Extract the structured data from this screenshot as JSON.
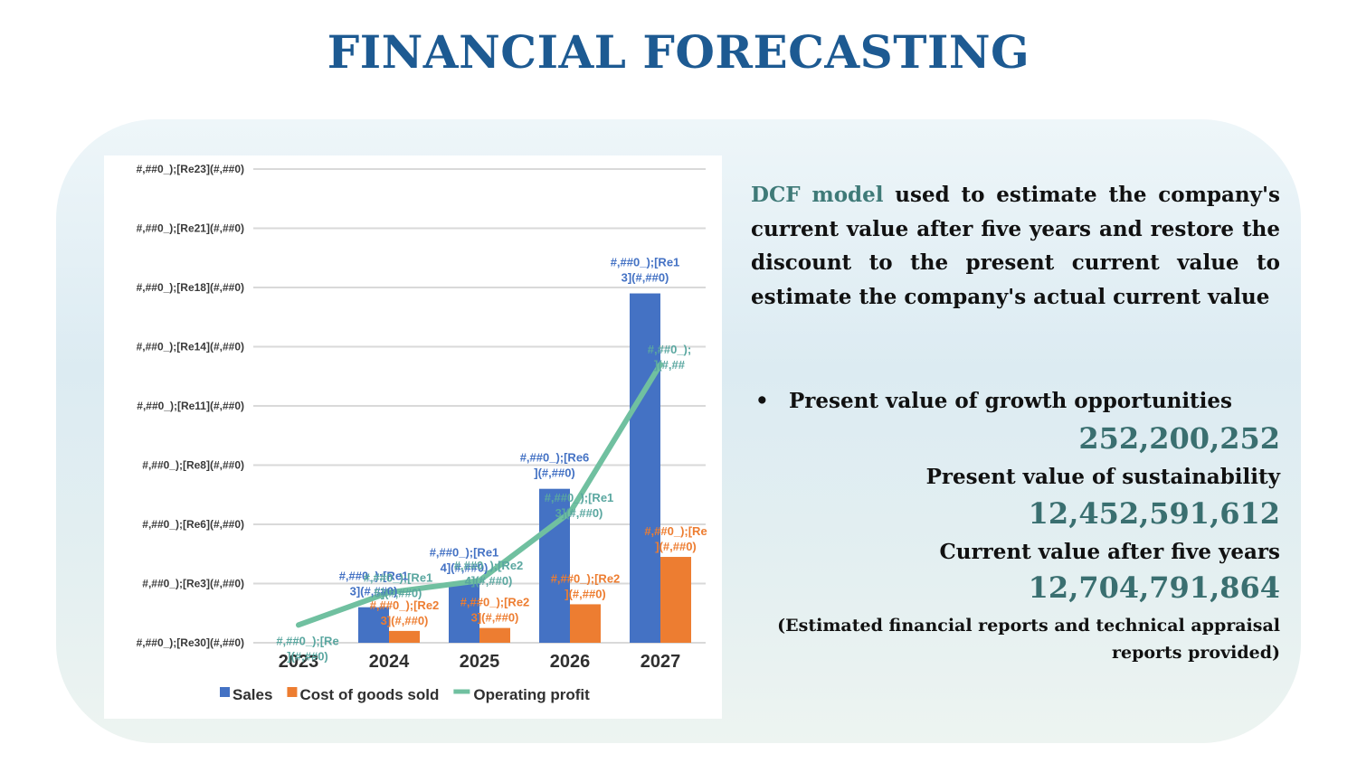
{
  "title": "FINANCIAL FORECASTING",
  "chart_data": {
    "type": "bar+line",
    "categories": [
      "2023",
      "2024",
      "2025",
      "2026",
      "2027"
    ],
    "y_tick_labels": [
      "#,##0_);[Re30](#,##0)",
      "#,##0_);[Re3](#,##0)",
      "#,##0_);[Re6](#,##0)",
      "#,##0_);[Re8](#,##0)",
      "#,##0_);[Re11](#,##0)",
      "#,##0_);[Re14](#,##0)",
      "#,##0_);[Re18](#,##0)",
      "#,##0_);[Re21](#,##0)",
      "#,##0_);[Re23](#,##0)"
    ],
    "ylim": [
      0,
      8
    ],
    "grid": true,
    "legend_position": "bottom",
    "series": [
      {
        "name": "Sales",
        "type": "bar",
        "color": "#4472c4",
        "values": [
          0,
          0.6,
          1.0,
          2.6,
          5.9
        ],
        "labels": [
          "",
          "#,##0_);[Re1 3](#,##0)",
          "#,##0_);[Re1 4](#,##0)",
          "#,##0_);[Re6 ](#,##0)",
          "#,##0_);[Re1 3](#,##0)"
        ]
      },
      {
        "name": "Cost of goods sold",
        "type": "bar",
        "color": "#ed7d31",
        "values": [
          0,
          0.2,
          0.25,
          0.65,
          1.45
        ],
        "labels": [
          "",
          "#,##0_);[Re2 3](#,##0)",
          "#,##0_);[Re2 3](#,##0)",
          "#,##0_);[Re2 ](#,##0)",
          "#,##0_);[Re ](#,##0)"
        ]
      },
      {
        "name": "Operating profit",
        "type": "line",
        "color": "#70c0a0",
        "values": [
          0.3,
          0.85,
          1.05,
          2.2,
          4.7
        ],
        "labels": [
          "#,##0_);[Re ](#,##0)",
          "#,##0_);[Re1 5](#,##0)",
          "#,##0_);[Re2 4](#,##0)",
          "#,##0_);[Re1 3](#,##0)",
          "#,##0_); ](#,##"
        ]
      }
    ]
  },
  "description": {
    "highlight": "DCF model",
    "text": " used to estimate the company's current value after five years and restore the discount to the present current value to estimate the company's actual current value"
  },
  "bullet": "Present value of growth opportunities",
  "values": [
    {
      "value": "252,200,252"
    },
    {
      "label": "Present value of sustainability",
      "value": "12,452,591,612"
    },
    {
      "label": "Current value after five years",
      "value": "12,704,791,864"
    }
  ],
  "note_line1": "(Estimated financial reports and technical appraisal",
  "note_line2": "reports provided)"
}
